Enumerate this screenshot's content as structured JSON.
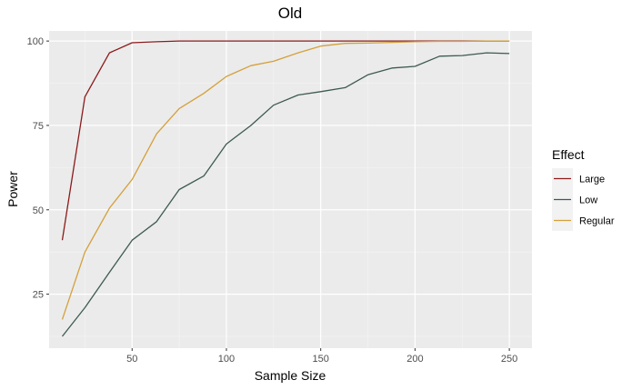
{
  "chart_data": {
    "type": "line",
    "title": "Old",
    "xlabel": "Sample Size",
    "ylabel": "Power",
    "xlim": [
      6,
      262
    ],
    "ylim": [
      9,
      103
    ],
    "xticks": [
      50,
      100,
      150,
      200,
      250
    ],
    "yticks": [
      25,
      50,
      75,
      100
    ],
    "grid": true,
    "legend": {
      "title": "Effect",
      "position": "right"
    },
    "x": [
      13,
      25,
      38,
      50,
      63,
      75,
      88,
      100,
      113,
      125,
      138,
      150,
      163,
      175,
      188,
      200,
      213,
      225,
      238,
      250
    ],
    "series": [
      {
        "name": "Large",
        "color": "#8b1a1a",
        "values": [
          41,
          83.5,
          96.5,
          99.5,
          99.8,
          100,
          100,
          100,
          100,
          100,
          100,
          100,
          100,
          100,
          100,
          100,
          100,
          100,
          100,
          100
        ]
      },
      {
        "name": "Low",
        "color": "#3d5a50",
        "values": [
          12.5,
          21,
          31.5,
          41,
          46.5,
          56,
          60,
          69.5,
          75,
          81,
          84,
          85,
          86.2,
          90,
          92,
          92.5,
          95.5,
          95.7,
          96.5,
          96.3
        ]
      },
      {
        "name": "Regular",
        "color": "#d4a03a",
        "values": [
          17.5,
          37.5,
          50.5,
          59,
          72.5,
          80,
          84.5,
          89.5,
          92.7,
          94,
          96.5,
          98.5,
          99.3,
          99.4,
          99.6,
          99.8,
          99.9,
          99.9,
          100,
          100
        ]
      }
    ]
  }
}
